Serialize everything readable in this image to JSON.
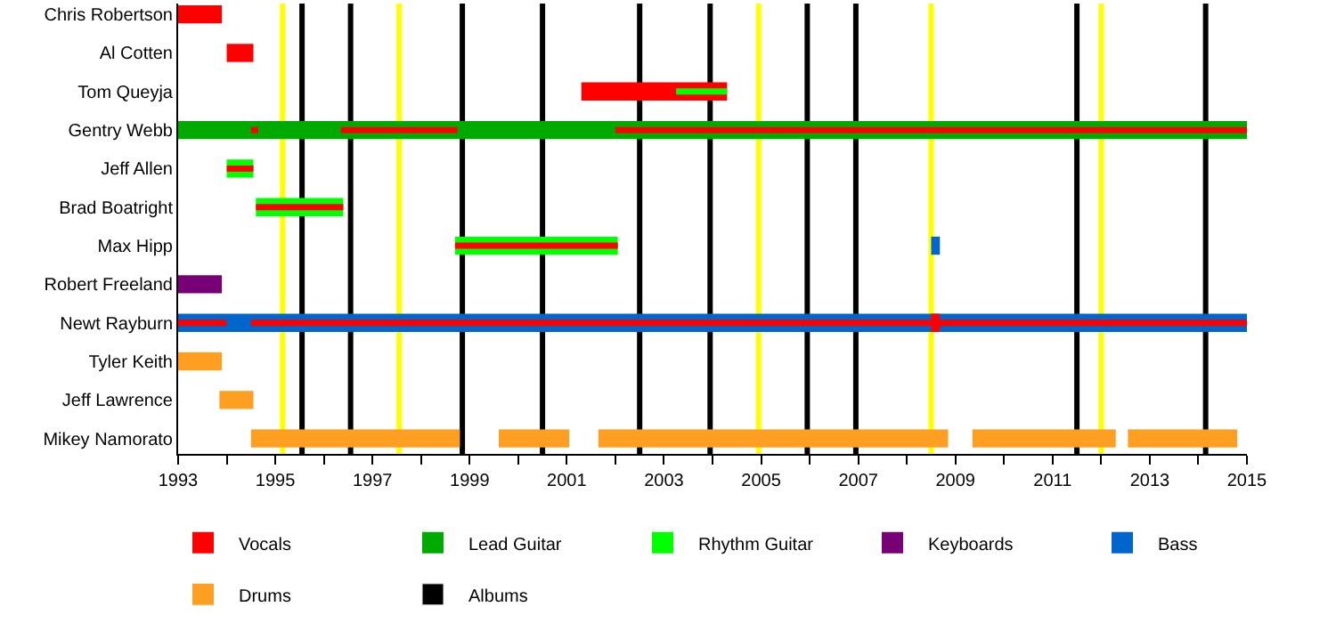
{
  "chart_data": {
    "type": "bar",
    "orientation": "horizontal",
    "categories": [
      "Chris Robertson",
      "Al Cotten",
      "Tom Queyja",
      "Gentry Webb",
      "Jeff Allen",
      "Brad Boatright",
      "Max Hipp",
      "Robert Freeland",
      "Newt Rayburn",
      "Tyler Keith",
      "Jeff Lawrence",
      "Mikey Namorato"
    ],
    "xlim": [
      1993,
      2015
    ],
    "xticks": [
      1993,
      {
        "value": 1994,
        "label": null
      },
      1995,
      {
        "value": 1996,
        "label": null
      },
      1997,
      {
        "value": 1998,
        "label": null
      },
      1999,
      {
        "value": 2000,
        "label": null
      },
      2001,
      {
        "value": 2002,
        "label": null
      },
      2003,
      {
        "value": 2004,
        "label": null
      },
      2005,
      {
        "value": 2006,
        "label": null
      },
      2007,
      {
        "value": 2008,
        "label": null
      },
      2009,
      {
        "value": 2010,
        "label": null
      },
      2011,
      {
        "value": 2012,
        "label": null
      },
      2013,
      {
        "value": 2014,
        "label": null
      },
      2015
    ],
    "series": [
      {
        "name": "Vocals",
        "color": "#ff0000",
        "base": [
          1993.0,
          1994.0,
          2001.3,
          null,
          null,
          null,
          null,
          null,
          2008.5,
          null,
          null,
          null
        ],
        "values": [
          0.9,
          0.55,
          3.0,
          null,
          null,
          null,
          null,
          null,
          0.18,
          null,
          null,
          null
        ]
      },
      {
        "name": "Lead Guitar",
        "color": "#00aa00",
        "base": [
          null,
          null,
          null,
          1993.0,
          null,
          null,
          null,
          null,
          null,
          null,
          null,
          null
        ],
        "values": [
          null,
          null,
          null,
          22.0,
          null,
          null,
          null,
          null,
          null,
          null,
          null,
          null
        ]
      },
      {
        "name": "Rhythm Guitar",
        "color": "#00ff00",
        "base": [
          null,
          null,
          null,
          null,
          1994.0,
          1994.6,
          1998.7,
          null,
          null,
          null,
          null,
          null
        ],
        "values": [
          null,
          null,
          null,
          null,
          0.55,
          1.8,
          3.35,
          null,
          null,
          null,
          null,
          null
        ]
      },
      {
        "name": "Keyboards",
        "color": "#770077",
        "base": [
          null,
          null,
          null,
          null,
          null,
          null,
          null,
          1993.0,
          null,
          null,
          null,
          null
        ],
        "values": [
          null,
          null,
          null,
          null,
          null,
          null,
          null,
          0.9,
          null,
          null,
          null,
          null
        ]
      },
      {
        "name": "Bass",
        "color": "#0066cc",
        "base": [
          null,
          null,
          null,
          null,
          null,
          null,
          2008.5,
          null,
          1993.0,
          null,
          null,
          null
        ],
        "values": [
          null,
          null,
          null,
          null,
          null,
          null,
          0.18,
          null,
          22.0,
          null,
          null,
          null
        ]
      },
      {
        "name": "Drums",
        "color": "#ff9f22",
        "base": [
          null,
          null,
          null,
          null,
          null,
          null,
          null,
          null,
          null,
          1993.0,
          1993.85,
          1994.5
        ],
        "values": [
          null,
          null,
          null,
          null,
          null,
          null,
          null,
          null,
          null,
          0.9,
          0.7,
          4.3
        ]
      },
      {
        "color": "#ff9f22",
        "base": [
          null,
          null,
          null,
          null,
          null,
          null,
          null,
          null,
          null,
          null,
          null,
          1999.6
        ],
        "values": [
          null,
          null,
          null,
          null,
          null,
          null,
          null,
          null,
          null,
          null,
          null,
          1.45
        ]
      },
      {
        "color": "#ff9f22",
        "base": [
          null,
          null,
          null,
          null,
          null,
          null,
          null,
          null,
          null,
          null,
          null,
          2001.65
        ],
        "values": [
          null,
          null,
          null,
          null,
          null,
          null,
          null,
          null,
          null,
          null,
          null,
          7.2
        ]
      },
      {
        "color": "#ff9f22",
        "base": [
          null,
          null,
          null,
          null,
          null,
          null,
          null,
          null,
          null,
          null,
          null,
          2009.35
        ],
        "values": [
          null,
          null,
          null,
          null,
          null,
          null,
          null,
          null,
          null,
          null,
          null,
          2.95
        ]
      },
      {
        "color": "#ff9f22",
        "base": [
          null,
          null,
          null,
          null,
          null,
          null,
          null,
          null,
          null,
          null,
          null,
          2012.55
        ],
        "values": [
          null,
          null,
          null,
          null,
          null,
          null,
          null,
          null,
          null,
          null,
          null,
          2.25
        ]
      },
      {
        "color": "#ff0000",
        "base": [
          null,
          null,
          null,
          1994.5,
          1994.0,
          1994.6,
          1998.7,
          null,
          1993.0,
          null,
          null,
          null
        ],
        "values": [
          null,
          null,
          null,
          0.15,
          0.55,
          1.8,
          3.35,
          null,
          1.0,
          null,
          null,
          null
        ]
      },
      {
        "color": "#ff0000",
        "base": [
          null,
          null,
          null,
          1996.35,
          null,
          null,
          null,
          null,
          1994.5,
          null,
          null,
          null
        ],
        "values": [
          null,
          null,
          null,
          2.4,
          null,
          null,
          null,
          null,
          20.5,
          null,
          null,
          null
        ]
      },
      {
        "color": "#ff0000",
        "base": [
          null,
          null,
          null,
          2002.0,
          null,
          null,
          null,
          null,
          null,
          null,
          null,
          null
        ],
        "values": [
          null,
          null,
          null,
          13.0,
          null,
          null,
          null,
          null,
          null,
          null,
          null,
          null
        ]
      },
      {
        "color": "#00ff00",
        "base": [
          null,
          null,
          2003.25,
          null,
          null,
          null,
          null,
          null,
          null,
          null,
          null,
          null
        ],
        "values": [
          null,
          null,
          1.05,
          null,
          null,
          null,
          null,
          null,
          null,
          null,
          null,
          null
        ]
      }
    ],
    "ref_lines": [
      {
        "axis": "x",
        "value": 1995.15,
        "color": "#ffff00"
      },
      {
        "axis": "x",
        "value": 1997.55,
        "color": "#ffff00"
      },
      {
        "axis": "x",
        "value": 2004.95,
        "color": "#ffff00"
      },
      {
        "axis": "x",
        "value": 2008.5,
        "color": "#ffff00"
      },
      {
        "axis": "x",
        "value": 2012.0,
        "color": "#ffff00"
      },
      {
        "axis": "x",
        "value": 1995.55,
        "label": "Albums",
        "color": "#000000"
      },
      {
        "axis": "x",
        "value": 1996.55,
        "color": "#000000"
      },
      {
        "axis": "x",
        "value": 1998.85,
        "color": "#000000"
      },
      {
        "axis": "x",
        "value": 2000.5,
        "color": "#000000"
      },
      {
        "axis": "x",
        "value": 2002.5,
        "color": "#000000"
      },
      {
        "axis": "x",
        "value": 2003.95,
        "color": "#000000"
      },
      {
        "axis": "x",
        "value": 2005.95,
        "color": "#000000"
      },
      {
        "axis": "x",
        "value": 2006.95,
        "color": "#000000"
      },
      {
        "axis": "x",
        "value": 2011.5,
        "color": "#000000"
      },
      {
        "axis": "x",
        "value": 2014.15,
        "color": "#000000"
      }
    ],
    "legend": "bottom",
    "grid": false
  }
}
